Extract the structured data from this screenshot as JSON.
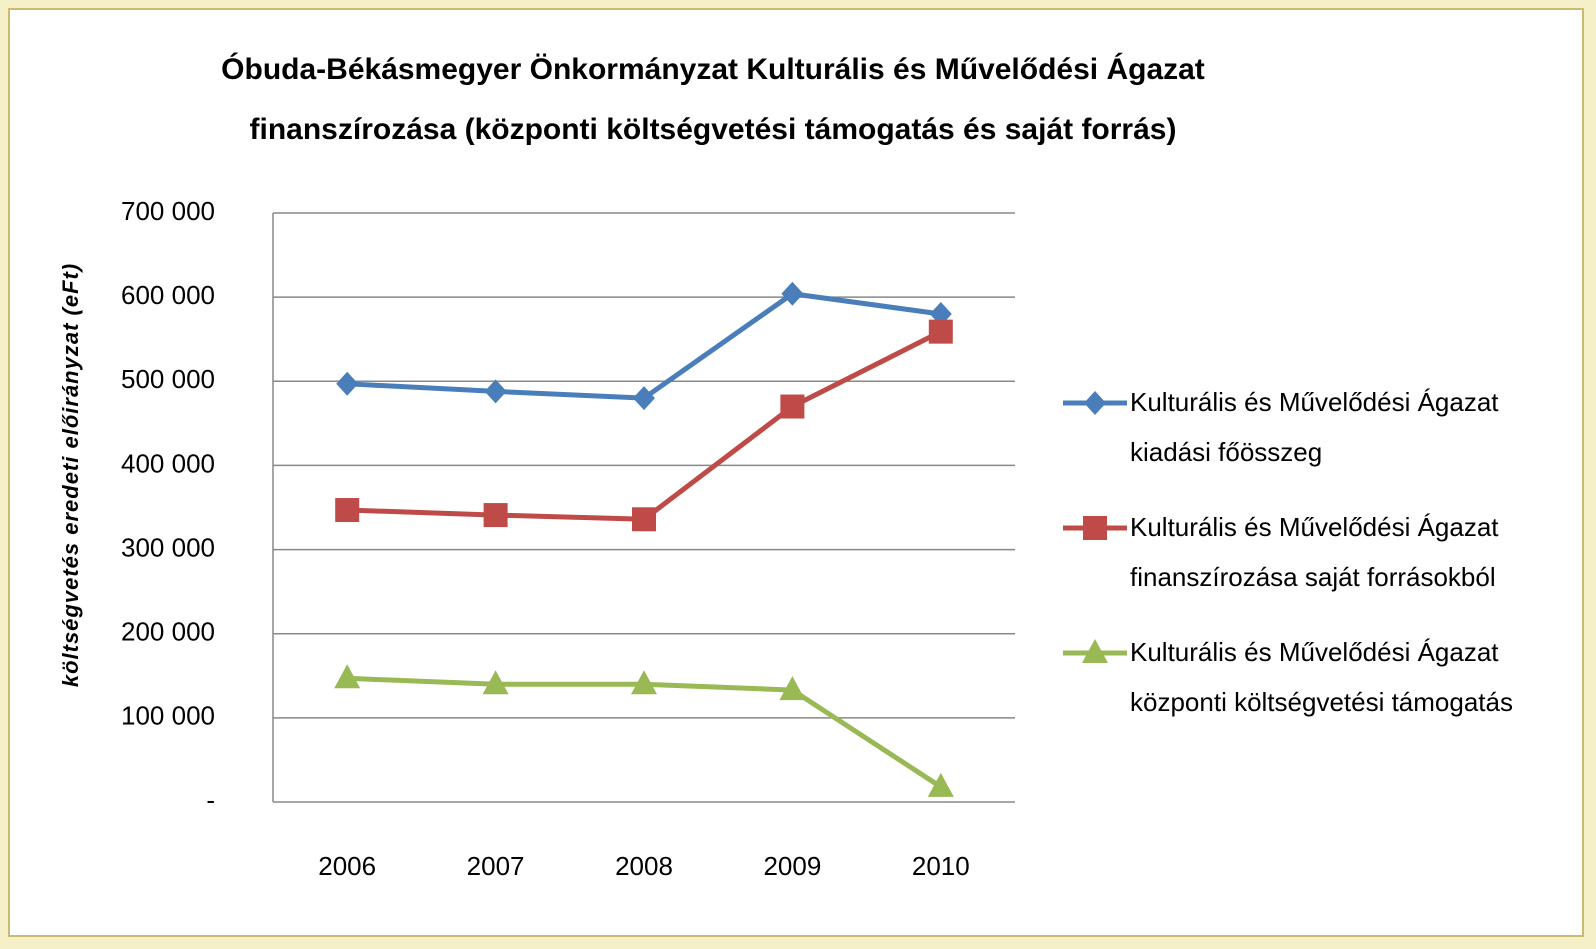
{
  "chart_data": {
    "type": "line",
    "title": "Óbuda-Békásmegyer Önkormányzat Kulturális és Művelődési Ágazat finanszírozása (központi költségvetési támogatás és saját forrás)",
    "y_label": "költségvetés eredeti előirányzat (eFt)",
    "categories": [
      "2006",
      "2007",
      "2008",
      "2009",
      "2010"
    ],
    "series": [
      {
        "name": "Kulturális és Művelődési Ágazat kiadási főösszeg",
        "color": "#4a7ebb",
        "marker": "diamond",
        "values": [
          497000,
          488000,
          480000,
          604000,
          580000
        ]
      },
      {
        "name": "Kulturális és Művelődési Ágazat finanszírozása saját forrásokból",
        "color": "#be4b48",
        "marker": "square",
        "values": [
          347000,
          341000,
          336000,
          470000,
          559000
        ]
      },
      {
        "name": "Kulturális és Művelődési Ágazat központi költségvetési támogatás",
        "color": "#98b954",
        "marker": "triangle",
        "values": [
          147000,
          140000,
          140000,
          133000,
          18000
        ]
      }
    ],
    "ylim": [
      0,
      700000
    ],
    "yticks": [
      {
        "value": 0,
        "label": "-"
      },
      {
        "value": 100000,
        "label": "100 000"
      },
      {
        "value": 200000,
        "label": "200 000"
      },
      {
        "value": 300000,
        "label": "300 000"
      },
      {
        "value": 400000,
        "label": "400 000"
      },
      {
        "value": 500000,
        "label": "500 000"
      },
      {
        "value": 600000,
        "label": "600 000"
      },
      {
        "value": 700000,
        "label": "700 000"
      }
    ],
    "grid": true,
    "legend": "right"
  }
}
